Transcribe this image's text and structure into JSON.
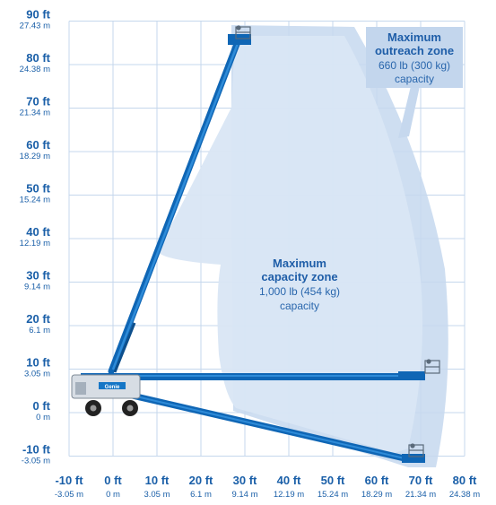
{
  "y_ticks": [
    {
      "v": 90,
      "ft": "90 ft",
      "m": "27.43 m"
    },
    {
      "v": 80,
      "ft": "80 ft",
      "m": "24.38 m"
    },
    {
      "v": 70,
      "ft": "70 ft",
      "m": "21.34 m"
    },
    {
      "v": 60,
      "ft": "60 ft",
      "m": "18.29 m"
    },
    {
      "v": 50,
      "ft": "50 ft",
      "m": "15.24 m"
    },
    {
      "v": 40,
      "ft": "40 ft",
      "m": "12.19 m"
    },
    {
      "v": 30,
      "ft": "30 ft",
      "m": "9.14 m"
    },
    {
      "v": 20,
      "ft": "20 ft",
      "m": "6.1 m"
    },
    {
      "v": 10,
      "ft": "10 ft",
      "m": "3.05 m"
    },
    {
      "v": 0,
      "ft": "0 ft",
      "m": "0 m"
    },
    {
      "v": -10,
      "ft": "-10 ft",
      "m": "-3.05 m"
    }
  ],
  "x_ticks": [
    {
      "v": -10,
      "ft": "-10 ft",
      "m": "-3.05 m"
    },
    {
      "v": 0,
      "ft": "0 ft",
      "m": "0 m"
    },
    {
      "v": 10,
      "ft": "10 ft",
      "m": "3.05 m"
    },
    {
      "v": 20,
      "ft": "20 ft",
      "m": "6.1 m"
    },
    {
      "v": 30,
      "ft": "30 ft",
      "m": "9.14 m"
    },
    {
      "v": 40,
      "ft": "40 ft",
      "m": "12.19 m"
    },
    {
      "v": 50,
      "ft": "50 ft",
      "m": "15.24 m"
    },
    {
      "v": 60,
      "ft": "60 ft",
      "m": "18.29 m"
    },
    {
      "v": 70,
      "ft": "70 ft",
      "m": "21.34 m"
    },
    {
      "v": 80,
      "ft": "80 ft",
      "m": "24.38 m"
    }
  ],
  "zones": {
    "capacity": {
      "line1": "Maximum",
      "line2": "capacity zone",
      "line3": "1,000 lb (454 kg)",
      "line4": "capacity"
    },
    "outreach": {
      "line1": "Maximum",
      "line2": "outreach zone",
      "line3": "660 lb (300 kg)",
      "line4": "capacity"
    }
  },
  "machine": {
    "brand": "Genie"
  },
  "colors": {
    "axis_text": "#1a5fa8",
    "grid": "#c5d7ec",
    "zone_light": "#dbe7f5",
    "zone_mid": "#c3d6ed",
    "boom": "#1576c6",
    "boom_dark": "#0d4f8c"
  }
}
